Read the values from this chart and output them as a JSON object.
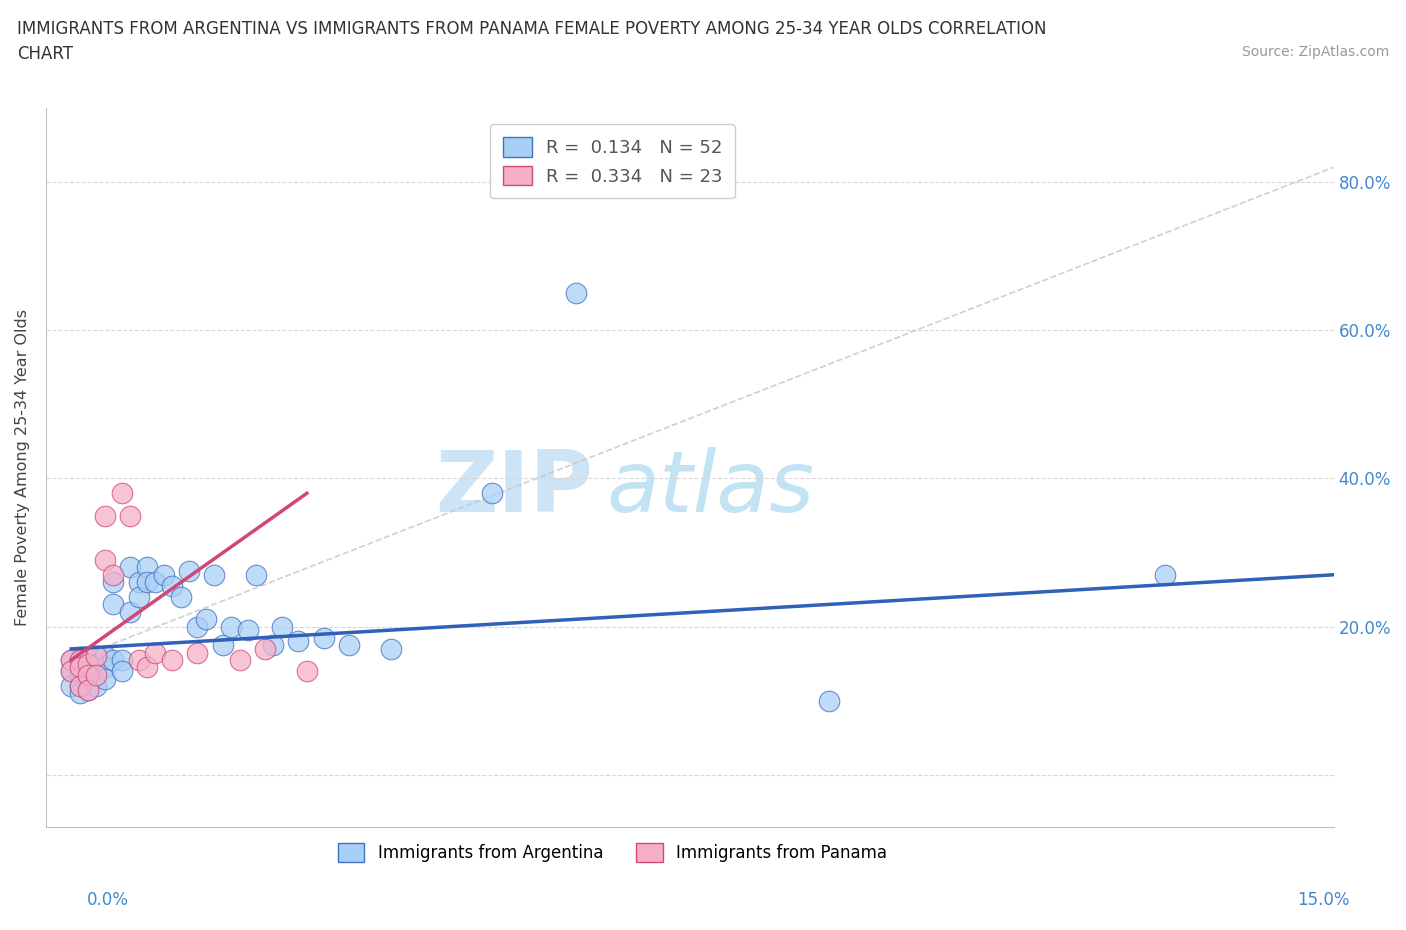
{
  "title_line1": "IMMIGRANTS FROM ARGENTINA VS IMMIGRANTS FROM PANAMA FEMALE POVERTY AMONG 25-34 YEAR OLDS CORRELATION",
  "title_line2": "CHART",
  "source": "Source: ZipAtlas.com",
  "ylabel": "Female Poverty Among 25-34 Year Olds",
  "xlim": [
    0.0,
    0.15
  ],
  "ylim": [
    -0.07,
    0.9
  ],
  "x_left_label": "0.0%",
  "x_right_label": "15.0%",
  "y_ticks": [
    0.0,
    0.2,
    0.4,
    0.6,
    0.8
  ],
  "y_tick_labels": [
    "",
    "20.0%",
    "40.0%",
    "60.0%",
    "80.0%"
  ],
  "argentina_R": 0.134,
  "argentina_N": 52,
  "panama_R": 0.334,
  "panama_N": 23,
  "argentina_color": "#a8d0f5",
  "panama_color": "#f5b0c8",
  "argentina_edge_color": "#4070c0",
  "panama_edge_color": "#d04878",
  "argentina_line_color": "#3060b8",
  "panama_line_color": "#d04878",
  "diag_line_color": "#c8c8c8",
  "argentina_x": [
    0.0,
    0.0,
    0.0,
    0.001,
    0.001,
    0.001,
    0.001,
    0.001,
    0.002,
    0.002,
    0.002,
    0.002,
    0.003,
    0.003,
    0.003,
    0.003,
    0.004,
    0.004,
    0.004,
    0.005,
    0.005,
    0.005,
    0.006,
    0.006,
    0.007,
    0.007,
    0.008,
    0.008,
    0.009,
    0.009,
    0.01,
    0.011,
    0.012,
    0.013,
    0.014,
    0.015,
    0.016,
    0.017,
    0.018,
    0.019,
    0.021,
    0.022,
    0.024,
    0.025,
    0.027,
    0.03,
    0.033,
    0.038,
    0.05,
    0.06,
    0.09,
    0.13
  ],
  "argentina_y": [
    0.155,
    0.14,
    0.12,
    0.155,
    0.145,
    0.135,
    0.12,
    0.11,
    0.15,
    0.14,
    0.13,
    0.115,
    0.16,
    0.15,
    0.135,
    0.12,
    0.16,
    0.145,
    0.13,
    0.26,
    0.23,
    0.155,
    0.155,
    0.14,
    0.28,
    0.22,
    0.26,
    0.24,
    0.28,
    0.26,
    0.26,
    0.27,
    0.255,
    0.24,
    0.275,
    0.2,
    0.21,
    0.27,
    0.175,
    0.2,
    0.195,
    0.27,
    0.175,
    0.2,
    0.18,
    0.185,
    0.175,
    0.17,
    0.38,
    0.65,
    0.1,
    0.27
  ],
  "panama_x": [
    0.0,
    0.0,
    0.001,
    0.001,
    0.001,
    0.002,
    0.002,
    0.002,
    0.003,
    0.003,
    0.004,
    0.004,
    0.005,
    0.006,
    0.007,
    0.008,
    0.009,
    0.01,
    0.012,
    0.015,
    0.02,
    0.023,
    0.028
  ],
  "panama_y": [
    0.155,
    0.14,
    0.155,
    0.145,
    0.12,
    0.15,
    0.135,
    0.115,
    0.16,
    0.135,
    0.35,
    0.29,
    0.27,
    0.38,
    0.35,
    0.155,
    0.145,
    0.165,
    0.155,
    0.165,
    0.155,
    0.17,
    0.14
  ]
}
